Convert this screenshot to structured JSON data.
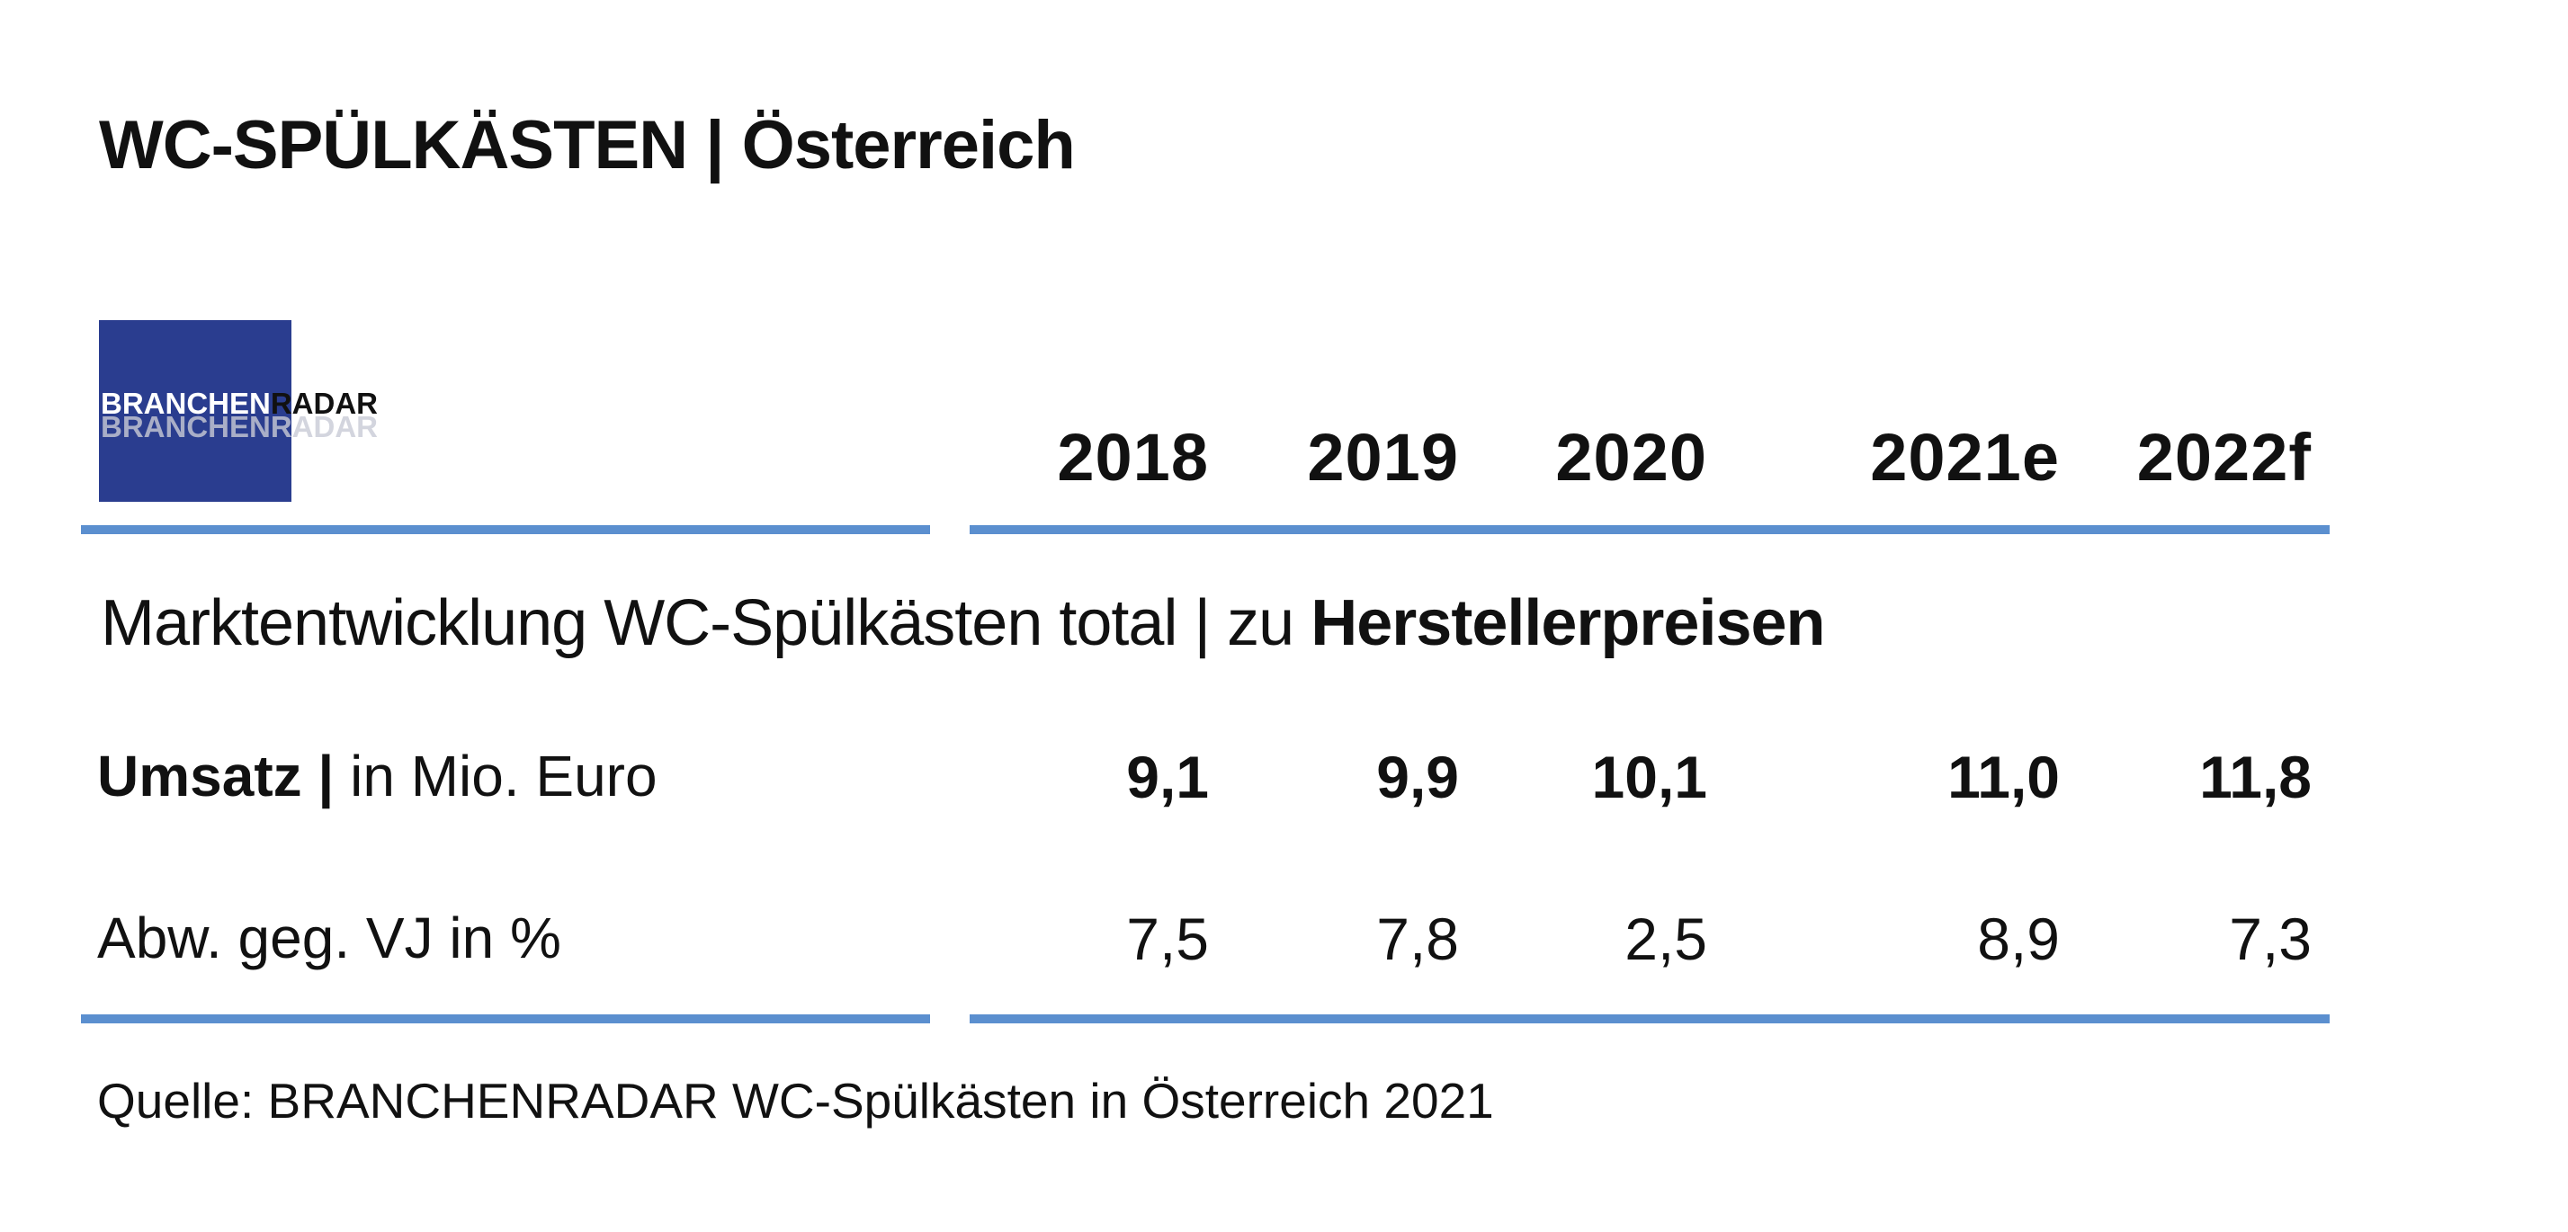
{
  "title": {
    "main": "WC-SPÜLKÄSTEN",
    "separator": " | ",
    "region": "Österreich"
  },
  "logo": {
    "part1": "BRANCHEN",
    "part2": "RADAR"
  },
  "columns": [
    "2018",
    "2019",
    "2020",
    "2021e",
    "2022f"
  ],
  "section_heading": {
    "prefix": "Marktentwicklung WC-Spülkästen total | zu ",
    "bold": "Herstellerpreisen"
  },
  "rows": [
    {
      "label_bold": "Umsatz |",
      "label_rest": " in Mio. Euro",
      "values": [
        "9,1",
        "9,9",
        "10,1",
        "11,0",
        "11,8"
      ]
    },
    {
      "label_bold": "",
      "label_rest": "Abw. geg. VJ in %",
      "values": [
        "7,5",
        "7,8",
        "2,5",
        "8,9",
        "7,3"
      ]
    }
  ],
  "source": "Quelle: BRANCHENRADAR WC-Spülkästen in Österreich 2021",
  "colors": {
    "accent_rule": "#5b8fcf",
    "logo_bg": "#2a3d8f",
    "text": "#111111"
  },
  "chart_data": {
    "type": "table",
    "title": "WC-SPÜLKÄSTEN | Österreich",
    "subtitle": "Marktentwicklung WC-Spülkästen total | zu Herstellerpreisen",
    "categories": [
      "2018",
      "2019",
      "2020",
      "2021e",
      "2022f"
    ],
    "series": [
      {
        "name": "Umsatz | in Mio. Euro",
        "values": [
          9.1,
          9.9,
          10.1,
          11.0,
          11.8
        ]
      },
      {
        "name": "Abw. geg. VJ in %",
        "values": [
          7.5,
          7.8,
          2.5,
          8.9,
          7.3
        ]
      }
    ],
    "source": "Quelle: BRANCHENRADAR WC-Spülkästen in Österreich 2021"
  }
}
